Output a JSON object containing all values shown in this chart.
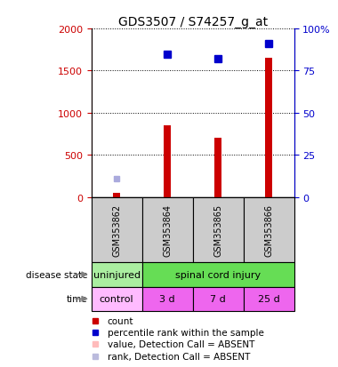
{
  "title": "GDS3507 / S74257_g_at",
  "samples": [
    "GSM353862",
    "GSM353864",
    "GSM353865",
    "GSM353866"
  ],
  "bar_values": [
    50,
    850,
    700,
    1650
  ],
  "absent_bar_values": [
    50,
    0,
    0,
    0
  ],
  "percentile_values_pct": [
    0,
    85,
    82,
    91
  ],
  "absent_rank_values_pct": [
    11,
    0,
    0,
    0
  ],
  "left_ylim": [
    0,
    2000
  ],
  "right_ylim": [
    0,
    100
  ],
  "left_yticks": [
    0,
    500,
    1000,
    1500,
    2000
  ],
  "right_yticks": [
    0,
    25,
    50,
    75,
    100
  ],
  "right_yticklabels": [
    "0",
    "25",
    "50",
    "75",
    "100%"
  ],
  "left_ycolor": "#cc0000",
  "right_ycolor": "#0000cc",
  "bar_color": "#cc0000",
  "absent_bar_color": "#ffbbbb",
  "percentile_color": "#0000cc",
  "absent_rank_color": "#aaaadd",
  "disease_state_cells": [
    {
      "text": "uninjured",
      "start": 0,
      "end": 1,
      "color": "#aaeea0"
    },
    {
      "text": "spinal cord injury",
      "start": 1,
      "end": 4,
      "color": "#66dd55"
    }
  ],
  "time_cells": [
    {
      "text": "control",
      "color": "#ffbbff"
    },
    {
      "text": "3 d",
      "color": "#ee66ee"
    },
    {
      "text": "7 d",
      "color": "#ee66ee"
    },
    {
      "text": "25 d",
      "color": "#ee66ee"
    }
  ],
  "legend_items": [
    {
      "color": "#cc0000",
      "label": "count"
    },
    {
      "color": "#0000cc",
      "label": "percentile rank within the sample"
    },
    {
      "color": "#ffbbbb",
      "label": "value, Detection Call = ABSENT"
    },
    {
      "color": "#bbbbdd",
      "label": "rank, Detection Call = ABSENT"
    }
  ],
  "sample_cell_color": "#cccccc",
  "background_color": "#ffffff",
  "bar_width": 0.15
}
